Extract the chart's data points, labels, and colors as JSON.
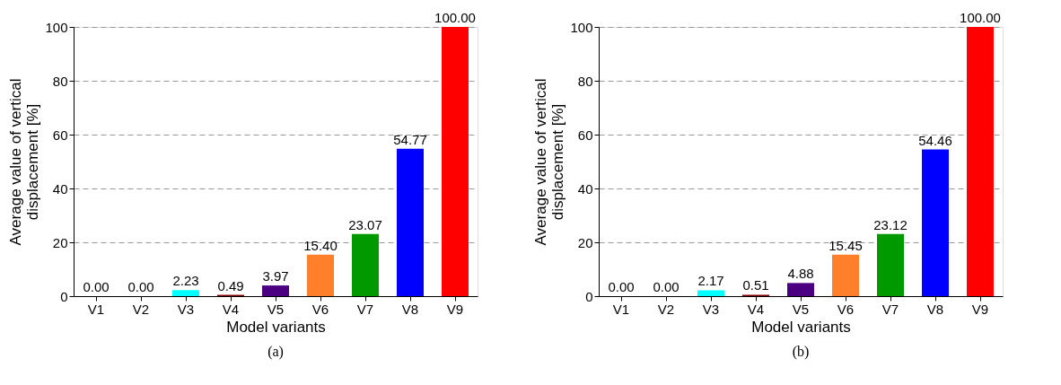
{
  "chart_data": [
    {
      "type": "bar",
      "categories": [
        "V1",
        "V2",
        "V3",
        "V4",
        "V5",
        "V6",
        "V7",
        "V8",
        "V9"
      ],
      "values": [
        0.0,
        0.0,
        2.23,
        0.49,
        3.97,
        15.4,
        23.07,
        54.77,
        100.0
      ],
      "value_labels": [
        "0.00",
        "0.00",
        "2.23",
        "0.49",
        "3.97",
        "15.40",
        "23.07",
        "54.77",
        "100.00"
      ],
      "colors": [
        "#000080",
        "#ff00ff",
        "#00ffff",
        "#800000",
        "#4b0082",
        "#ff7f2a",
        "#009900",
        "#0000ff",
        "#ff0000"
      ],
      "xlabel": "Model variants",
      "ylabel": "Average value of vertical displacement [%]",
      "ylim": [
        0,
        100
      ],
      "yticks": [
        0,
        20,
        40,
        60,
        80,
        100
      ],
      "grid": "y",
      "line_style": "dashed",
      "annotations": [
        "(a)"
      ]
    },
    {
      "type": "bar",
      "categories": [
        "V1",
        "V2",
        "V3",
        "V4",
        "V5",
        "V6",
        "V7",
        "V8",
        "V9"
      ],
      "values": [
        0.0,
        0.0,
        2.17,
        0.51,
        4.88,
        15.45,
        23.12,
        54.46,
        100.0
      ],
      "value_labels": [
        "0.00",
        "0.00",
        "2.17",
        "0.51",
        "4.88",
        "15.45",
        "23.12",
        "54.46",
        "100.00"
      ],
      "colors": [
        "#000080",
        "#ff00ff",
        "#00ffff",
        "#800000",
        "#4b0082",
        "#ff7f2a",
        "#009900",
        "#0000ff",
        "#ff0000"
      ],
      "xlabel": "Model variants",
      "ylabel": "Average value of vertical displacement [%]",
      "ylim": [
        0,
        100
      ],
      "yticks": [
        0,
        20,
        40,
        60,
        80,
        100
      ],
      "grid": "y",
      "line_style": "dashed",
      "annotations": [
        "(b)"
      ]
    }
  ]
}
